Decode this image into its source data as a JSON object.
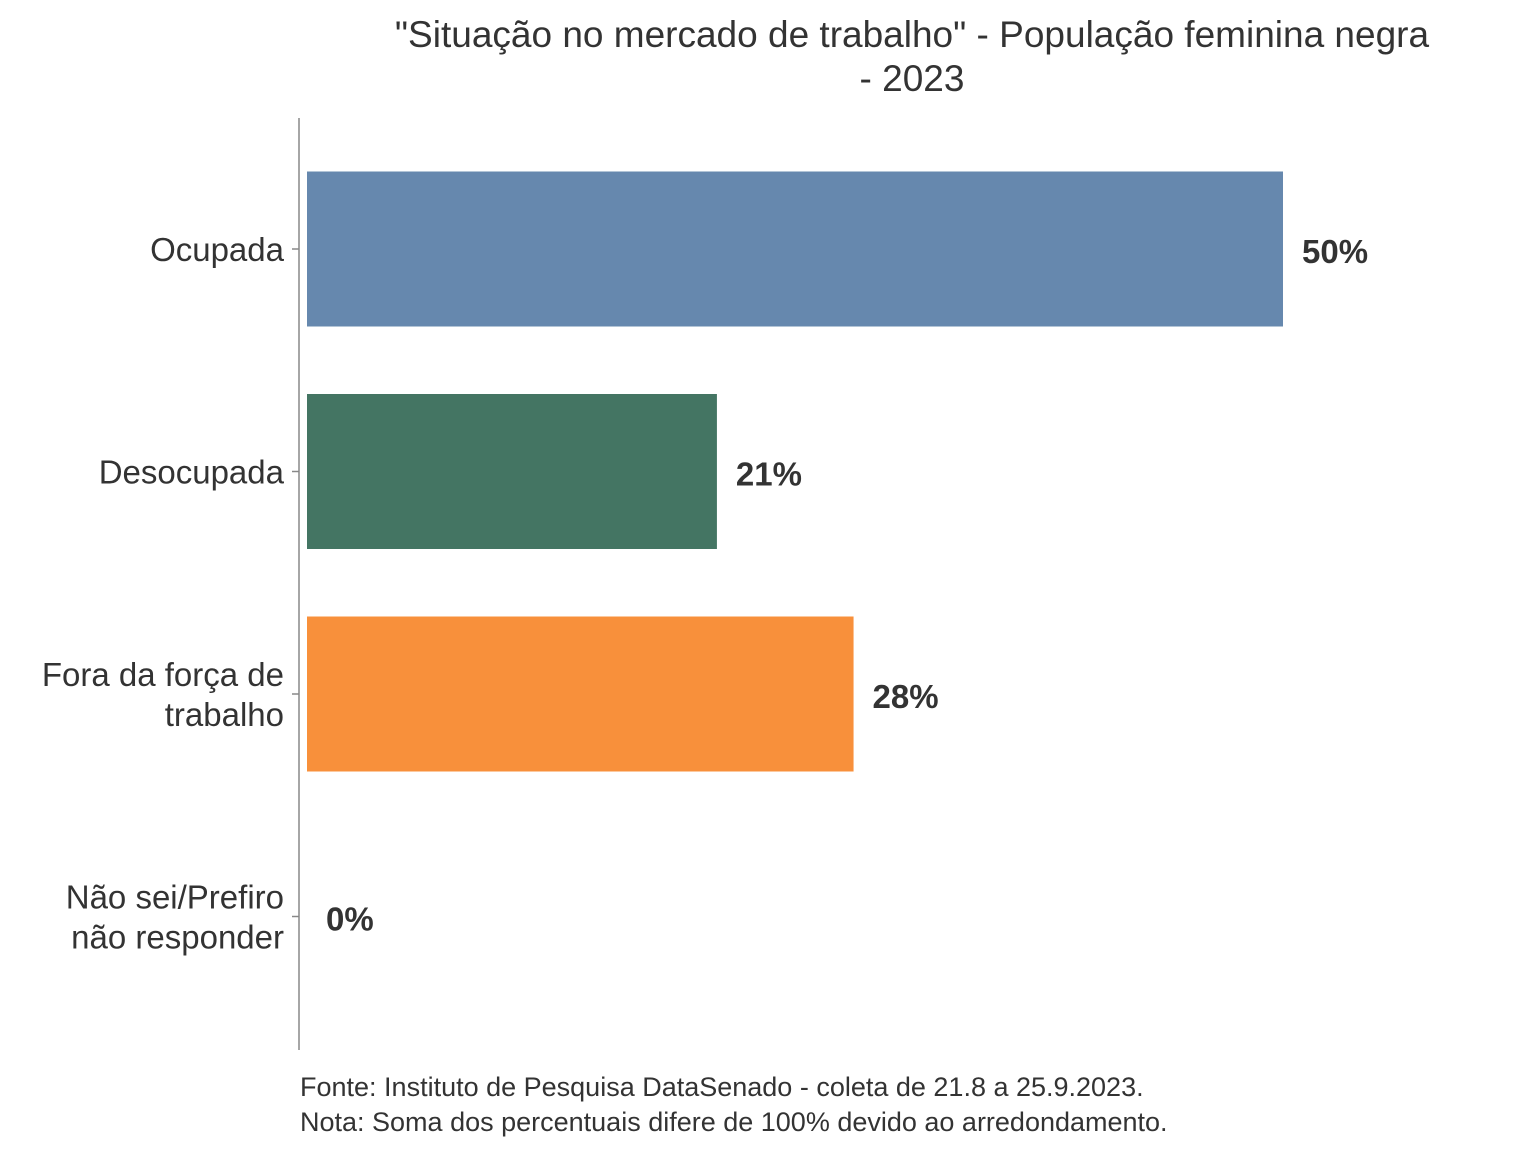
{
  "chart_data": {
    "type": "bar",
    "orientation": "horizontal",
    "title_lines": [
      "\"Situação no mercado de trabalho\" - População feminina negra",
      "- 2023"
    ],
    "categories": [
      [
        "Ocupada"
      ],
      [
        "Desocupada"
      ],
      [
        "Fora da força de",
        "trabalho"
      ],
      [
        "Não sei/Prefiro",
        "não responder"
      ]
    ],
    "values": [
      50,
      21,
      28,
      0
    ],
    "value_labels": [
      "50%",
      "21%",
      "28%",
      "0%"
    ],
    "colors": [
      "#6688ae",
      "#447563",
      "#f8903b",
      "#f8903b"
    ],
    "xlim": [
      0,
      50
    ],
    "grid": false,
    "footnotes": [
      "Fonte: Instituto de Pesquisa DataSenado - coleta de 21.8 a 25.9.2023.",
      "Nota: Soma dos percentuais difere de 100% devido ao arredondamento."
    ]
  }
}
